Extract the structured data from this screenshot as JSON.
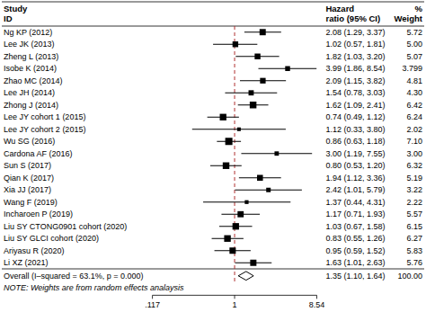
{
  "chart_data": {
    "type": "forest",
    "log": "x",
    "color": "#000000",
    "categories": [
      "Ng KP (2012)",
      "Lee JK (2013)",
      "Zheng L (2013)",
      "Isobe K (2014)",
      "Zhao MC (2014)",
      "Lee JH (2014)",
      "Zhong J (2014)",
      "Lee JY cohort 1 (2015)",
      "Lee JY cohort 2 (2015)",
      "Wu SG (2016)",
      "Cardona AF (2016)",
      "Sun S (2017)",
      "Qian K (2017)",
      "Xia JJ (2017)",
      "Wang F (2019)",
      "Incharoen P (2019)",
      "Liu SY CTONG0901 cohort (2020)",
      "Liu SY GLCI cohort (2020)",
      "Ariyasu R (2020)",
      "Li XZ (2021)"
    ],
    "values": [
      2.08,
      1.02,
      1.82,
      3.99,
      2.09,
      1.54,
      1.62,
      0.74,
      1.12,
      0.86,
      3.0,
      0.8,
      1.94,
      2.42,
      1.37,
      1.17,
      1.03,
      0.83,
      0.95,
      1.63
    ],
    "ci_low": [
      1.29,
      0.57,
      1.03,
      1.86,
      1.15,
      0.78,
      1.09,
      0.49,
      0.33,
      0.63,
      1.19,
      0.53,
      1.12,
      1.01,
      0.44,
      0.71,
      0.67,
      0.55,
      0.59,
      1.01
    ],
    "ci_high": [
      3.37,
      1.81,
      3.2,
      8.54,
      3.82,
      3.03,
      2.41,
      1.12,
      3.8,
      1.18,
      7.55,
      1.2,
      3.36,
      5.79,
      4.31,
      1.93,
      1.58,
      1.26,
      1.52,
      2.63
    ],
    "value_labels": [
      "2.08 (1.29, 3.37)",
      "1.02 (0.57, 1.81)",
      "1.82 (1.03, 3.20)",
      "3.99 (1.86, 8.54)",
      "2.09 (1.15, 3.82)",
      "1.54 (0.78, 3.03)",
      "1.62 (1.09, 2.41)",
      "0.74 (0.49, 1.12)",
      "1.12 (0.33, 3.80)",
      "0.86 (0.63, 1.18)",
      "3.00 (1.19, 7.55)",
      "0.80 (0.53, 1.20)",
      "1.94 (1.12, 3.36)",
      "2.42 (1.01, 5.79)",
      "1.37 (0.44, 4.31)",
      "1.17 (0.71, 1.93)",
      "1.03 (0.67, 1.58)",
      "0.83 (0.55, 1.26)",
      "0.95 (0.59, 1.52)",
      "1.63 (1.01, 2.63)"
    ],
    "weights": [
      5.72,
      5.0,
      5.07,
      3.799,
      4.81,
      4.3,
      6.42,
      6.24,
      2.02,
      7.1,
      3.0,
      6.32,
      5.19,
      3.22,
      2.22,
      5.57,
      6.15,
      6.27,
      5.83,
      5.76
    ],
    "weight_labels": [
      "5.72",
      "5.00",
      "5.07",
      "3.799",
      "4.81",
      "4.30",
      "6.42",
      "6.24",
      "2.02",
      "7.10",
      "3.00",
      "6.32",
      "5.19",
      "3.22",
      "2.22",
      "5.57",
      "6.15",
      "6.27",
      "5.83",
      "5.76"
    ],
    "overall": {
      "label": "Overall (I–squared = 63.1%, p = 0.000)",
      "value": 1.35,
      "ci_low": 1.1,
      "ci_high": 1.64,
      "value_label": "1.35 (1.10, 1.64)",
      "weight": 100.0,
      "weight_label": "100.00"
    },
    "note": "NOTE: Weights are from random effects analaysis",
    "header_study": [
      "Study",
      "ID"
    ],
    "header_hr": [
      "Hazard",
      "ratio (95% CI)"
    ],
    "header_weight": [
      "%",
      "Weight"
    ],
    "ref_line": 1.0,
    "ref_line_color": "#b03030",
    "xlim": [
      0.117,
      8.54
    ],
    "xticks": [
      {
        "value": 0.117,
        "label": ".117"
      },
      1,
      {
        "value": 8.54,
        "label": "8.54"
      }
    ]
  }
}
